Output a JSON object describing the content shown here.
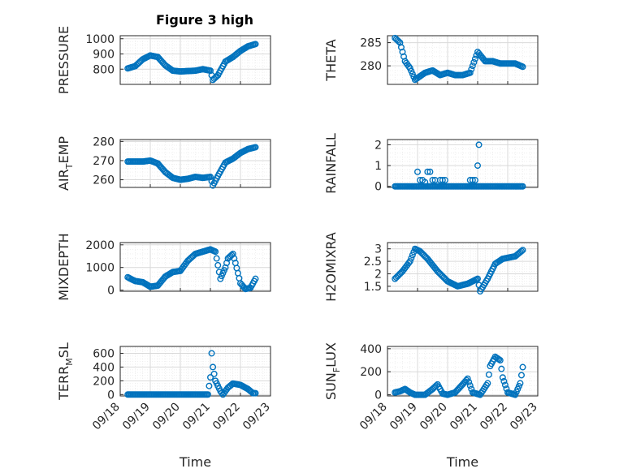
{
  "figure_title": "Figure 3 high",
  "marker_color": "#0072bd",
  "chart_data": [
    {
      "type": "scatter",
      "ylabel": "PRESSURE",
      "ylabel_sub": "",
      "ylabel_tail": "",
      "xlabel": "",
      "ylim": [
        700,
        1020
      ],
      "yticks": [
        800,
        900,
        1000
      ],
      "xlim": [
        "2023-09-18",
        "2023-09-23"
      ],
      "xtick_labels": [],
      "grid": true,
      "minor_grid": true,
      "keypoints": [
        [
          "2023-09-18 06:00",
          805
        ],
        [
          "2023-09-18 12:00",
          820
        ],
        [
          "2023-09-18 18:00",
          865
        ],
        [
          "2023-09-19 00:00",
          890
        ],
        [
          "2023-09-19 06:00",
          880
        ],
        [
          "2023-09-19 12:00",
          825
        ],
        [
          "2023-09-19 18:00",
          790
        ],
        [
          "2023-09-20 00:00",
          785
        ],
        [
          "2023-09-20 12:00",
          790
        ],
        [
          "2023-09-20 18:00",
          800
        ],
        [
          "2023-09-21 00:00",
          790
        ],
        [
          "2023-09-21 02:00",
          730
        ],
        [
          "2023-09-21 06:00",
          760
        ],
        [
          "2023-09-21 12:00",
          850
        ],
        [
          "2023-09-21 18:00",
          880
        ],
        [
          "2023-09-22 00:00",
          920
        ],
        [
          "2023-09-22 06:00",
          950
        ],
        [
          "2023-09-22 12:00",
          965
        ]
      ],
      "points": []
    },
    {
      "type": "scatter",
      "ylabel": "THETA",
      "ylabel_sub": "",
      "ylabel_tail": "",
      "xlabel": "",
      "ylim": [
        276,
        286.5
      ],
      "yticks": [
        280,
        285
      ],
      "xlim": [
        "2023-09-18",
        "2023-09-23"
      ],
      "xtick_labels": [],
      "grid": true,
      "minor_grid": true,
      "keypoints": [
        [
          "2023-09-18 06:00",
          286
        ],
        [
          "2023-09-18 10:00",
          285
        ],
        [
          "2023-09-18 14:00",
          281
        ],
        [
          "2023-09-18 18:00",
          279.5
        ],
        [
          "2023-09-18 22:00",
          277
        ],
        [
          "2023-09-19 06:00",
          278.5
        ],
        [
          "2023-09-19 12:00",
          279
        ],
        [
          "2023-09-19 18:00",
          278
        ],
        [
          "2023-09-20 00:00",
          278.5
        ],
        [
          "2023-09-20 06:00",
          278
        ],
        [
          "2023-09-20 12:00",
          278
        ],
        [
          "2023-09-20 18:00",
          278.5
        ],
        [
          "2023-09-21 00:00",
          283
        ],
        [
          "2023-09-21 06:00",
          281
        ],
        [
          "2023-09-21 12:00",
          281
        ],
        [
          "2023-09-21 18:00",
          280.5
        ],
        [
          "2023-09-22 06:00",
          280.5
        ],
        [
          "2023-09-22 12:00",
          279.8
        ]
      ],
      "points": []
    },
    {
      "type": "scatter",
      "ylabel": "AIR",
      "ylabel_sub": "T",
      "ylabel_tail": "EMP",
      "xlabel": "",
      "ylim": [
        256,
        281
      ],
      "yticks": [
        260,
        270,
        280
      ],
      "xlim": [
        "2023-09-18",
        "2023-09-23"
      ],
      "xtick_labels": [],
      "grid": true,
      "minor_grid": true,
      "keypoints": [
        [
          "2023-09-18 06:00",
          269.5
        ],
        [
          "2023-09-18 18:00",
          269.5
        ],
        [
          "2023-09-19 00:00",
          270
        ],
        [
          "2023-09-19 06:00",
          268.5
        ],
        [
          "2023-09-19 12:00",
          264
        ],
        [
          "2023-09-19 18:00",
          261
        ],
        [
          "2023-09-20 00:00",
          260
        ],
        [
          "2023-09-20 06:00",
          260.5
        ],
        [
          "2023-09-20 12:00",
          261.5
        ],
        [
          "2023-09-20 18:00",
          261
        ],
        [
          "2023-09-21 00:00",
          261.5
        ],
        [
          "2023-09-21 02:00",
          257
        ],
        [
          "2023-09-21 06:00",
          262
        ],
        [
          "2023-09-21 12:00",
          269
        ],
        [
          "2023-09-21 18:00",
          271
        ],
        [
          "2023-09-22 00:00",
          274
        ],
        [
          "2023-09-22 06:00",
          276
        ],
        [
          "2023-09-22 12:00",
          277
        ]
      ],
      "points": []
    },
    {
      "type": "scatter",
      "ylabel": "RAINFALL",
      "ylabel_sub": "",
      "ylabel_tail": "",
      "xlabel": "",
      "ylim": [
        -0.05,
        2.25
      ],
      "yticks": [
        0,
        1,
        2
      ],
      "xlim": [
        "2023-09-18",
        "2023-09-23"
      ],
      "xtick_labels": [],
      "grid": true,
      "minor_grid": true,
      "keypoints": [
        [
          "2023-09-18 06:00",
          0
        ],
        [
          "2023-09-22 12:00",
          0
        ]
      ],
      "points": [
        [
          "2023-09-19 00:00",
          0.7
        ],
        [
          "2023-09-19 02:00",
          0.3
        ],
        [
          "2023-09-19 04:00",
          0.3
        ],
        [
          "2023-09-19 06:00",
          0.2
        ],
        [
          "2023-09-19 08:00",
          0.7
        ],
        [
          "2023-09-19 10:00",
          0.7
        ],
        [
          "2023-09-19 12:00",
          0.3
        ],
        [
          "2023-09-19 14:00",
          0.3
        ],
        [
          "2023-09-19 18:00",
          0.3
        ],
        [
          "2023-09-19 20:00",
          0.3
        ],
        [
          "2023-09-19 22:00",
          0.3
        ],
        [
          "2023-09-20 18:00",
          0.3
        ],
        [
          "2023-09-20 20:00",
          0.3
        ],
        [
          "2023-09-20 22:00",
          0.3
        ],
        [
          "2023-09-21 00:00",
          1.0
        ],
        [
          "2023-09-21 01:00",
          2.0
        ]
      ]
    },
    {
      "type": "scatter",
      "ylabel": "MIXDEPTH",
      "ylabel_sub": "",
      "ylabel_tail": "",
      "xlabel": "",
      "ylim": [
        -50,
        2100
      ],
      "yticks": [
        0,
        1000,
        2000
      ],
      "xlim": [
        "2023-09-18",
        "2023-09-23"
      ],
      "xtick_labels": [],
      "grid": true,
      "minor_grid": true,
      "keypoints": [
        [
          "2023-09-18 06:00",
          570
        ],
        [
          "2023-09-18 09:00",
          480
        ],
        [
          "2023-09-18 12:00",
          400
        ],
        [
          "2023-09-18 18:00",
          350
        ],
        [
          "2023-09-19 00:00",
          150
        ],
        [
          "2023-09-19 06:00",
          200
        ],
        [
          "2023-09-19 12:00",
          600
        ],
        [
          "2023-09-19 18:00",
          800
        ],
        [
          "2023-09-20 00:00",
          850
        ],
        [
          "2023-09-20 06:00",
          1300
        ],
        [
          "2023-09-20 12:00",
          1600
        ],
        [
          "2023-09-20 18:00",
          1700
        ],
        [
          "2023-09-21 00:00",
          1800
        ],
        [
          "2023-09-21 04:00",
          1700
        ],
        [
          "2023-09-21 08:00",
          500
        ],
        [
          "2023-09-21 12:00",
          1000
        ],
        [
          "2023-09-21 14:00",
          1400
        ],
        [
          "2023-09-21 18:00",
          1600
        ],
        [
          "2023-09-21 20:00",
          1200
        ],
        [
          "2023-09-22 00:00",
          300
        ],
        [
          "2023-09-22 04:00",
          50
        ],
        [
          "2023-09-22 08:00",
          100
        ],
        [
          "2023-09-22 12:00",
          500
        ]
      ],
      "points": []
    },
    {
      "type": "scatter",
      "ylabel": "H2OMIXRA",
      "ylabel_sub": "",
      "ylabel_tail": "",
      "xlabel": "",
      "ylim": [
        1.3,
        3.25
      ],
      "yticks": [
        1.5,
        2,
        2.5,
        3
      ],
      "ytick_labels": [
        "1.5",
        "2",
        "2.5",
        "3"
      ],
      "xlim": [
        "2023-09-18",
        "2023-09-23"
      ],
      "xtick_labels": [],
      "grid": true,
      "minor_grid": true,
      "keypoints": [
        [
          "2023-09-18 06:00",
          1.8
        ],
        [
          "2023-09-18 12:00",
          2.1
        ],
        [
          "2023-09-18 18:00",
          2.5
        ],
        [
          "2023-09-18 22:00",
          3.0
        ],
        [
          "2023-09-19 02:00",
          2.9
        ],
        [
          "2023-09-19 08:00",
          2.6
        ],
        [
          "2023-09-19 16:00",
          2.1
        ],
        [
          "2023-09-20 00:00",
          1.7
        ],
        [
          "2023-09-20 08:00",
          1.5
        ],
        [
          "2023-09-20 16:00",
          1.6
        ],
        [
          "2023-09-21 00:00",
          1.8
        ],
        [
          "2023-09-21 02:00",
          1.3
        ],
        [
          "2023-09-21 08:00",
          1.8
        ],
        [
          "2023-09-21 14:00",
          2.4
        ],
        [
          "2023-09-21 20:00",
          2.6
        ],
        [
          "2023-09-22 06:00",
          2.7
        ],
        [
          "2023-09-22 12:00",
          2.95
        ]
      ],
      "points": []
    },
    {
      "type": "scatter",
      "ylabel": "TERR",
      "ylabel_sub": "M",
      "ylabel_tail": "SL",
      "xlabel": "Time",
      "ylim": [
        -20,
        700
      ],
      "yticks": [
        0,
        200,
        400,
        600
      ],
      "xlim": [
        "2023-09-18",
        "2023-09-23"
      ],
      "xtick_labels": [
        "09/18",
        "09/19",
        "09/20",
        "09/21",
        "09/22",
        "09/23"
      ],
      "grid": true,
      "minor_grid": true,
      "keypoints": [
        [
          "2023-09-18 06:00",
          0
        ],
        [
          "2023-09-20 22:00",
          0
        ],
        [
          "2023-09-21 00:00",
          250
        ],
        [
          "2023-09-21 01:00",
          600
        ],
        [
          "2023-09-21 02:00",
          400
        ],
        [
          "2023-09-21 04:00",
          200
        ],
        [
          "2023-09-21 08:00",
          50
        ],
        [
          "2023-09-21 10:00",
          0
        ],
        [
          "2023-09-21 14:00",
          100
        ],
        [
          "2023-09-21 18:00",
          160
        ],
        [
          "2023-09-22 00:00",
          140
        ],
        [
          "2023-09-22 06:00",
          80
        ],
        [
          "2023-09-22 10:00",
          20
        ],
        [
          "2023-09-22 12:00",
          20
        ]
      ],
      "points": []
    },
    {
      "type": "scatter",
      "ylabel": "SUN",
      "ylabel_sub": "F",
      "ylabel_tail": "LUX",
      "xlabel": "Time",
      "ylim": [
        -10,
        420
      ],
      "yticks": [
        0,
        200,
        400
      ],
      "xlim": [
        "2023-09-18",
        "2023-09-23"
      ],
      "xtick_labels": [
        "09/18",
        "09/19",
        "09/20",
        "09/21",
        "09/22",
        "09/23"
      ],
      "grid": true,
      "minor_grid": true,
      "keypoints": [
        [
          "2023-09-18 06:00",
          20
        ],
        [
          "2023-09-18 10:00",
          30
        ],
        [
          "2023-09-18 14:00",
          50
        ],
        [
          "2023-09-18 18:00",
          20
        ],
        [
          "2023-09-18 22:00",
          0
        ],
        [
          "2023-09-19 06:00",
          0
        ],
        [
          "2023-09-19 12:00",
          50
        ],
        [
          "2023-09-19 16:00",
          90
        ],
        [
          "2023-09-19 20:00",
          10
        ],
        [
          "2023-09-20 00:00",
          0
        ],
        [
          "2023-09-20 06:00",
          20
        ],
        [
          "2023-09-20 12:00",
          90
        ],
        [
          "2023-09-20 16:00",
          140
        ],
        [
          "2023-09-20 20:00",
          20
        ],
        [
          "2023-09-21 02:00",
          0
        ],
        [
          "2023-09-21 08:00",
          100
        ],
        [
          "2023-09-21 10:00",
          250
        ],
        [
          "2023-09-21 14:00",
          330
        ],
        [
          "2023-09-21 18:00",
          300
        ],
        [
          "2023-09-21 20:00",
          150
        ],
        [
          "2023-09-22 00:00",
          20
        ],
        [
          "2023-09-22 06:00",
          0
        ],
        [
          "2023-09-22 10:00",
          100
        ],
        [
          "2023-09-22 12:00",
          240
        ]
      ],
      "points": []
    }
  ]
}
